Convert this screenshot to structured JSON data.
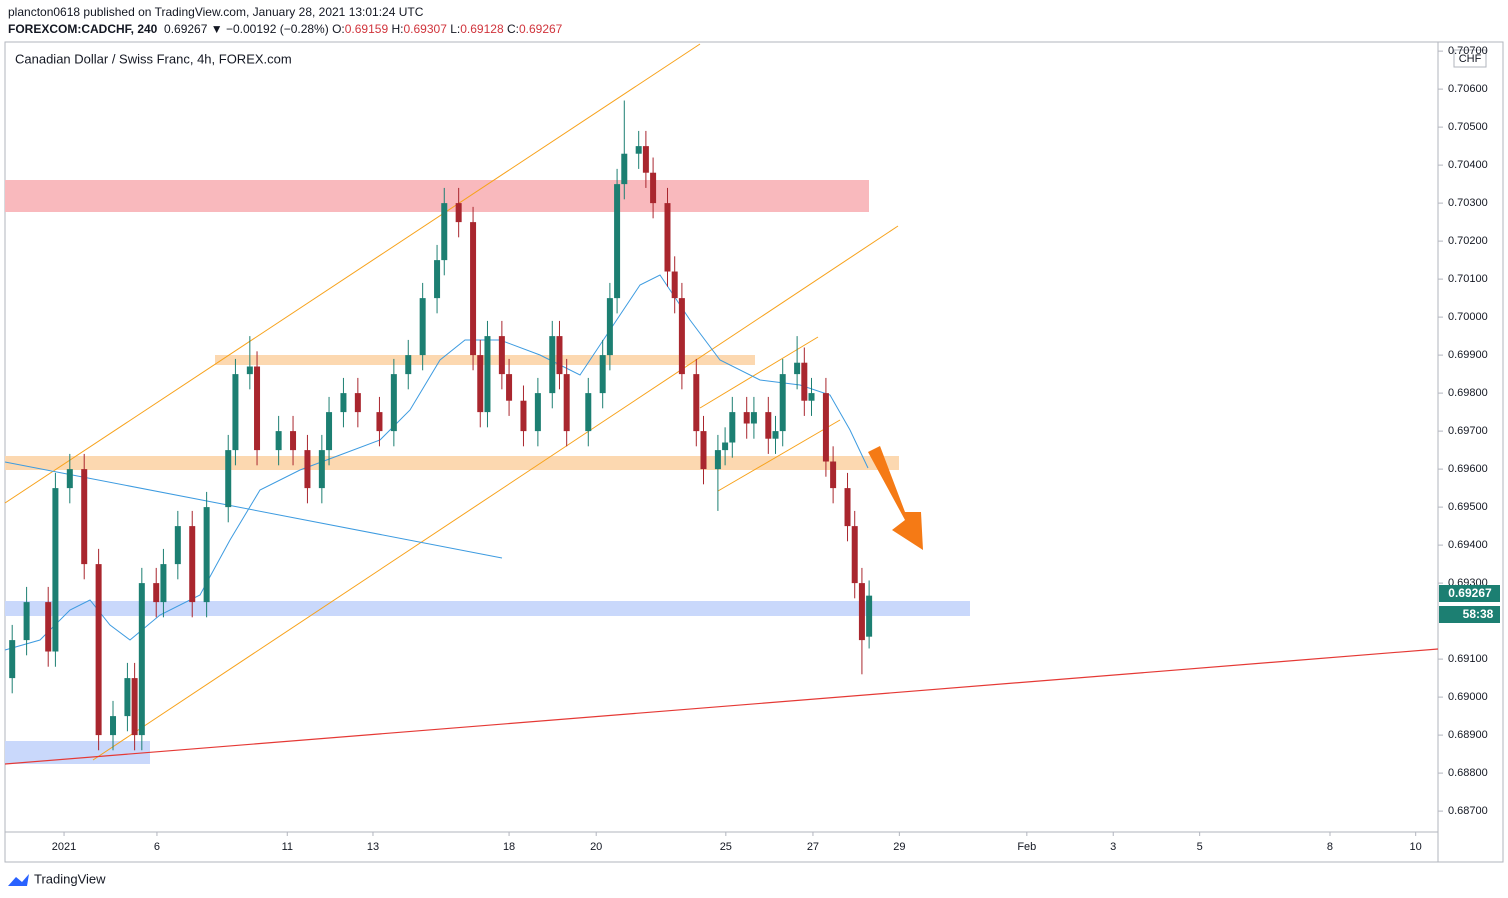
{
  "header": {
    "publisher": "plancton0618 published on TradingView.com, January 28, 2021 13:01:24 UTC",
    "symbol": "FOREXCOM:CADCHF, 240",
    "last": "0.69267",
    "change": "▼ −0.00192 (−0.28%)",
    "open_label": "O:",
    "open": "0.69159",
    "high_label": "H:",
    "high": "0.69307",
    "low_label": "L:",
    "low": "0.69128",
    "close_label": "C:",
    "close": "0.69267"
  },
  "footer": {
    "brand": "TradingView"
  },
  "chart_data": {
    "type": "candlestick",
    "title": "Canadian Dollar / Swiss Franc, 4h, FOREX.com",
    "currency": "CHF",
    "last_price_label": "0.69267",
    "countdown": "58:38",
    "up_color": "#1c7f72",
    "down_color": "#a9262e",
    "xlim": [
      0,
      199
    ],
    "ylim": [
      0.68645,
      0.70724
    ],
    "xticks": [
      {
        "value": 8.2,
        "label": "2021"
      },
      {
        "value": 21.1,
        "label": "6"
      },
      {
        "value": 39.2,
        "label": "11"
      },
      {
        "value": 51.1,
        "label": "13"
      },
      {
        "value": 70,
        "label": "18"
      },
      {
        "value": 82.1,
        "label": "20"
      },
      {
        "value": 100.1,
        "label": "25"
      },
      {
        "value": 112.2,
        "label": "27"
      },
      {
        "value": 124.2,
        "label": "29"
      },
      {
        "value": 141.9,
        "label": "Feb"
      },
      {
        "value": 153.9,
        "label": "3"
      },
      {
        "value": 165.9,
        "label": "5"
      },
      {
        "value": 184,
        "label": "8"
      },
      {
        "value": 195.9,
        "label": "10"
      }
    ],
    "yticks": [
      {
        "value": 0.687,
        "label": "0.68700"
      },
      {
        "value": 0.688,
        "label": "0.68800"
      },
      {
        "value": 0.689,
        "label": "0.68900"
      },
      {
        "value": 0.69,
        "label": "0.69000"
      },
      {
        "value": 0.691,
        "label": "0.69100"
      },
      {
        "value": 0.693,
        "label": "0.69300"
      },
      {
        "value": 0.694,
        "label": "0.69400"
      },
      {
        "value": 0.695,
        "label": "0.69500"
      },
      {
        "value": 0.696,
        "label": "0.69600"
      },
      {
        "value": 0.697,
        "label": "0.69700"
      },
      {
        "value": 0.698,
        "label": "0.69800"
      },
      {
        "value": 0.699,
        "label": "0.69900"
      },
      {
        "value": 0.7,
        "label": "0.70000"
      },
      {
        "value": 0.701,
        "label": "0.70100"
      },
      {
        "value": 0.702,
        "label": "0.70200"
      },
      {
        "value": 0.703,
        "label": "0.70300"
      },
      {
        "value": 0.704,
        "label": "0.70400"
      },
      {
        "value": 0.705,
        "label": "0.70500"
      },
      {
        "value": 0.706,
        "label": "0.70600"
      },
      {
        "value": 0.707,
        "label": "0.70700"
      }
    ],
    "candles": {
      "x": [
        1,
        3,
        6,
        7,
        9,
        11,
        13,
        15,
        17,
        18,
        19,
        21,
        22,
        24,
        26,
        28,
        31,
        32,
        34,
        35,
        38,
        40,
        42,
        44,
        45,
        47,
        49,
        52,
        54,
        56,
        58,
        60,
        61,
        63,
        65,
        66,
        67,
        69,
        70,
        72,
        74,
        76,
        77,
        78,
        81,
        83,
        84,
        85,
        86,
        88,
        89,
        90,
        92,
        93,
        94,
        96,
        97,
        99,
        100,
        101,
        103,
        104,
        106,
        107,
        108,
        110,
        111,
        112,
        114,
        115,
        117,
        118,
        119,
        120
      ],
      "open": [
        0.6905,
        0.6915,
        0.6925,
        0.6912,
        0.6955,
        0.696,
        0.6935,
        0.689,
        0.6895,
        0.6905,
        0.689,
        0.693,
        0.6925,
        0.6935,
        0.6945,
        0.6925,
        0.695,
        0.6965,
        0.6985,
        0.6987,
        0.6965,
        0.697,
        0.6965,
        0.6955,
        0.6965,
        0.6975,
        0.698,
        0.6975,
        0.697,
        0.6985,
        0.699,
        0.7005,
        0.7015,
        0.703,
        0.7025,
        0.699,
        0.6975,
        0.6995,
        0.6985,
        0.6978,
        0.697,
        0.698,
        0.6995,
        0.6985,
        0.697,
        0.698,
        0.699,
        0.7005,
        0.7035,
        0.7043,
        0.7045,
        0.7038,
        0.703,
        0.7012,
        0.7005,
        0.6985,
        0.697,
        0.696,
        0.6965,
        0.6967,
        0.6975,
        0.6972,
        0.6975,
        0.6968,
        0.697,
        0.6985,
        0.6988,
        0.6978,
        0.698,
        0.6962,
        0.6955,
        0.6945,
        0.693,
        0.69159
      ],
      "high": [
        0.6919,
        0.6929,
        0.6929,
        0.6959,
        0.6964,
        0.6964,
        0.6939,
        0.6899,
        0.6909,
        0.6909,
        0.6934,
        0.6934,
        0.6939,
        0.6949,
        0.6949,
        0.6954,
        0.6969,
        0.6989,
        0.6995,
        0.6991,
        0.6974,
        0.6974,
        0.6969,
        0.6969,
        0.6979,
        0.6984,
        0.6984,
        0.6979,
        0.6989,
        0.6994,
        0.7009,
        0.7019,
        0.7034,
        0.7034,
        0.7029,
        0.6994,
        0.6999,
        0.6999,
        0.6989,
        0.6982,
        0.6984,
        0.6999,
        0.6999,
        0.6989,
        0.6984,
        0.6994,
        0.7009,
        0.7039,
        0.7057,
        0.7049,
        0.7049,
        0.7042,
        0.7034,
        0.7016,
        0.7009,
        0.6989,
        0.6974,
        0.6969,
        0.6971,
        0.6979,
        0.6979,
        0.6979,
        0.6979,
        0.6974,
        0.6989,
        0.6995,
        0.6992,
        0.6984,
        0.6984,
        0.6966,
        0.6959,
        0.6949,
        0.6934,
        0.69307
      ],
      "low": [
        0.6901,
        0.6911,
        0.6908,
        0.6908,
        0.6951,
        0.6931,
        0.6886,
        0.6886,
        0.6891,
        0.6886,
        0.6886,
        0.6921,
        0.6921,
        0.6931,
        0.6921,
        0.6921,
        0.6946,
        0.6961,
        0.6981,
        0.6961,
        0.6961,
        0.6961,
        0.6951,
        0.6951,
        0.6961,
        0.6971,
        0.6971,
        0.6966,
        0.6966,
        0.6981,
        0.6986,
        0.7001,
        0.7011,
        0.7021,
        0.6986,
        0.6971,
        0.6971,
        0.6981,
        0.6974,
        0.6966,
        0.6966,
        0.6976,
        0.6981,
        0.6966,
        0.6966,
        0.6976,
        0.6986,
        0.7001,
        0.7031,
        0.7039,
        0.7034,
        0.7026,
        0.7008,
        0.7001,
        0.6981,
        0.6966,
        0.6956,
        0.6949,
        0.6961,
        0.6963,
        0.6968,
        0.6968,
        0.6964,
        0.6964,
        0.6966,
        0.6981,
        0.6974,
        0.6974,
        0.6958,
        0.6951,
        0.6941,
        0.6926,
        0.6906,
        0.69128
      ],
      "close": [
        0.6915,
        0.6925,
        0.6912,
        0.6955,
        0.696,
        0.6935,
        0.689,
        0.6895,
        0.6905,
        0.689,
        0.693,
        0.6925,
        0.6935,
        0.6945,
        0.6925,
        0.695,
        0.6965,
        0.6985,
        0.6987,
        0.6965,
        0.697,
        0.6965,
        0.6955,
        0.6965,
        0.6975,
        0.698,
        0.6975,
        0.697,
        0.6985,
        0.699,
        0.7005,
        0.7015,
        0.703,
        0.7025,
        0.699,
        0.6975,
        0.6995,
        0.6985,
        0.6978,
        0.697,
        0.698,
        0.6995,
        0.6985,
        0.697,
        0.698,
        0.699,
        0.7005,
        0.7035,
        0.7043,
        0.7045,
        0.7038,
        0.703,
        0.7012,
        0.7005,
        0.6985,
        0.697,
        0.696,
        0.6965,
        0.6967,
        0.6975,
        0.6972,
        0.6975,
        0.6968,
        0.697,
        0.6985,
        0.6988,
        0.6978,
        0.698,
        0.6962,
        0.6955,
        0.6945,
        0.693,
        0.6915,
        0.69267
      ]
    }
  }
}
